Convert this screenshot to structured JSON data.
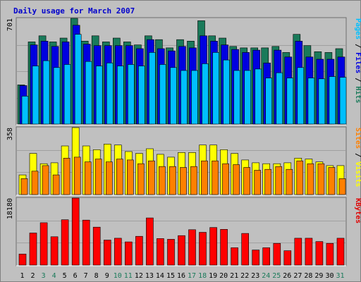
{
  "chart_data": {
    "type": "bar",
    "title": "Daily usage for March 2007",
    "categories": [
      "1",
      "2",
      "3",
      "4",
      "5",
      "6",
      "7",
      "8",
      "9",
      "10",
      "11",
      "12",
      "13",
      "14",
      "15",
      "16",
      "17",
      "18",
      "19",
      "20",
      "21",
      "22",
      "23",
      "24",
      "25",
      "26",
      "27",
      "28",
      "29",
      "30",
      "31"
    ],
    "weekend_days": [
      "3",
      "4",
      "10",
      "11",
      "17",
      "18",
      "24",
      "25",
      "31"
    ],
    "panels": [
      {
        "id": "top",
        "max_label": "701",
        "ylim": [
          0,
          701
        ],
        "right_label": [
          {
            "text": "Pages",
            "color": "#00bfff"
          },
          {
            "text": " / ",
            "color": "#000000"
          },
          {
            "text": "Files",
            "color": "#0000e0"
          },
          {
            "text": " / ",
            "color": "#000000"
          },
          {
            "text": "Hits",
            "color": "#1a7a5a"
          }
        ],
        "series": [
          {
            "name": "Hits",
            "color": "#1a7a5a",
            "values": [
              260,
              545,
              585,
              545,
              570,
              701,
              550,
              585,
              545,
              570,
              545,
              525,
              585,
              560,
              505,
              560,
              550,
              685,
              585,
              570,
              515,
              505,
              505,
              505,
              515,
              475,
              595,
              520,
              480,
              475,
              500
            ]
          },
          {
            "name": "Files",
            "color": "#0000e0",
            "values": [
              255,
              525,
              550,
              515,
              545,
              655,
              530,
              520,
              520,
              520,
              520,
              500,
              560,
              500,
              485,
              515,
              505,
              585,
              550,
              525,
              495,
              475,
              490,
              405,
              490,
              445,
              550,
              445,
              430,
              430,
              445
            ]
          },
          {
            "name": "Pages",
            "color": "#00bfff",
            "values": [
              185,
              385,
              420,
              375,
              395,
              595,
              415,
              385,
              405,
              385,
              395,
              385,
              475,
              395,
              375,
              355,
              355,
              400,
              475,
              425,
              355,
              355,
              365,
              305,
              340,
              305,
              375,
              305,
              300,
              315,
              310
            ]
          }
        ]
      },
      {
        "id": "mid",
        "max_label": "358",
        "ylim": [
          0,
          358
        ],
        "right_label": [
          {
            "text": "Sites",
            "color": "#ff8000"
          },
          {
            "text": " / ",
            "color": "#000000"
          },
          {
            "text": "Visits",
            "color": "#ffff00"
          }
        ],
        "series": [
          {
            "name": "Visits",
            "color": "#ffff00",
            "values": [
              105,
              220,
              165,
              170,
              260,
              358,
              260,
              240,
              270,
              265,
              230,
              220,
              245,
              215,
              200,
              225,
              225,
              265,
              265,
              240,
              220,
              185,
              170,
              165,
              165,
              170,
              195,
              190,
              175,
              155,
              155
            ]
          },
          {
            "name": "Sites",
            "color": "#ff8000",
            "values": [
              85,
              125,
              155,
              105,
              195,
              200,
              175,
              190,
              175,
              190,
              185,
              165,
              180,
              150,
              150,
              145,
              150,
              180,
              180,
              165,
              160,
              145,
              130,
              135,
              150,
              135,
              180,
              165,
              165,
              145,
              85
            ]
          }
        ]
      },
      {
        "id": "bot",
        "max_label": "18180",
        "ylim": [
          0,
          18180
        ],
        "right_label": [
          {
            "text": "KBytes",
            "color": "#e00000"
          }
        ],
        "series": [
          {
            "name": "KBytes",
            "color": "#ff0000",
            "values": [
              3000,
              8700,
              11500,
              7700,
              12300,
              18180,
              12200,
              10300,
              6800,
              7300,
              6300,
              7800,
              12800,
              7200,
              7000,
              8000,
              9600,
              8900,
              10200,
              9700,
              4700,
              8600,
              4100,
              4700,
              5900,
              3900,
              7300,
              7300,
              6400,
              5900,
              7300
            ]
          }
        ]
      }
    ]
  }
}
